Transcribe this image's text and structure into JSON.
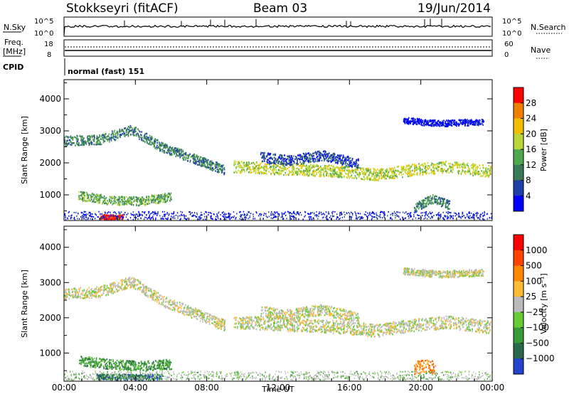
{
  "header": {
    "station": "Stokkseyri (fitACF)",
    "beam": "Beam 03",
    "date": "19/Jun/2014"
  },
  "top_panels": {
    "nsky_label": "N.Sky",
    "nsky_ticks": [
      "10^5",
      "10^0"
    ],
    "nsearch_label": "N.Search",
    "nsearch_ticks": [
      "10^5",
      "10^0"
    ],
    "freq_label_1": "Freq.",
    "freq_label_2": "[MHz]",
    "freq_ticks": [
      "18",
      "8"
    ],
    "nave_label": "Nave",
    "nave_ticks": [
      "60",
      "0"
    ],
    "cpid_label": "CPID",
    "cpid_text": "normal (fast) 151"
  },
  "colors": {
    "power_scale": [
      "#0000ff",
      "#1f3fa8",
      "#3a7a58",
      "#4fa84f",
      "#b8d83a",
      "#f0c000",
      "#f08000",
      "#ff0000"
    ],
    "velocity_scale": [
      "#2244cc",
      "#2a6a4a",
      "#3a9a3a",
      "#66cc33",
      "#bbbbbb",
      "#ffbb33",
      "#ff8800",
      "#ff4400",
      "#ff0000"
    ]
  },
  "chart_data": [
    {
      "type": "heatmap",
      "name": "power",
      "ylabel": "Slant Range [km]",
      "yticks": [
        1000,
        2000,
        3000,
        4000
      ],
      "ylim": [
        200,
        4600
      ],
      "xlim": [
        0,
        24
      ],
      "colorbar_label": "Power [dB]",
      "colorbar_ticks": [
        "28",
        "24",
        "20",
        "16",
        "12",
        "8",
        "4"
      ],
      "bands": [
        {
          "x": [
            0.0,
            2.0,
            3.8,
            5.5,
            7.5,
            9.0
          ],
          "y": [
            2700,
            2750,
            3050,
            2500,
            2100,
            1800
          ],
          "w": 220,
          "level": 2
        },
        {
          "x": [
            9.5,
            11.5,
            13.5,
            15.5,
            17.5,
            19.5,
            21.5,
            23.9
          ],
          "y": [
            1900,
            1850,
            1800,
            1750,
            1650,
            1800,
            1900,
            1750
          ],
          "w": 260,
          "level": 4
        },
        {
          "x": [
            11.0,
            12.5,
            14.5,
            16.5
          ],
          "y": [
            2200,
            2100,
            2250,
            2000
          ],
          "w": 220,
          "level": 1
        },
        {
          "x": [
            0.8,
            2.5,
            4.2,
            6.0
          ],
          "y": [
            1000,
            850,
            820,
            950
          ],
          "w": 200,
          "level": 3
        },
        {
          "x": [
            2.0,
            2.6,
            3.3
          ],
          "y": [
            330,
            320,
            330
          ],
          "w": 110,
          "level": 7
        },
        {
          "x": [
            19.6,
            20.6,
            21.6
          ],
          "y": [
            600,
            900,
            700
          ],
          "w": 200,
          "level": 2
        },
        {
          "x": [
            19.0,
            21.0,
            23.5
          ],
          "y": [
            3350,
            3250,
            3300
          ],
          "w": 140,
          "level": 0
        }
      ]
    },
    {
      "type": "heatmap",
      "name": "velocity",
      "ylabel": "Slant Range [km]",
      "yticks": [
        1000,
        2000,
        3000,
        4000
      ],
      "ylim": [
        200,
        4600
      ],
      "xlim": [
        0,
        24
      ],
      "xlabel": "Time UT",
      "xticks": [
        "00:00",
        "04:00",
        "08:00",
        "12:00",
        "16:00",
        "20:00",
        "00:00"
      ],
      "colorbar_label": "Velocity [m s⁻¹]",
      "colorbar_ticks": [
        "1000",
        "500",
        "100",
        "25",
        "−25",
        "−100",
        "−500",
        "−1000"
      ],
      "bands": [
        {
          "x": [
            0.0,
            2.0,
            3.8,
            5.5,
            7.5,
            9.0
          ],
          "y": [
            2700,
            2750,
            3050,
            2500,
            2100,
            1800
          ],
          "w": 220,
          "level": 4
        },
        {
          "x": [
            9.5,
            11.5,
            13.5,
            15.5,
            17.5,
            19.5,
            21.5,
            23.9
          ],
          "y": [
            1900,
            1850,
            1800,
            1750,
            1650,
            1800,
            1900,
            1750
          ],
          "w": 260,
          "level": 4
        },
        {
          "x": [
            11.0,
            12.5,
            14.5,
            16.5
          ],
          "y": [
            2200,
            2100,
            2250,
            2000
          ],
          "w": 220,
          "level": 4
        },
        {
          "x": [
            0.8,
            2.5,
            4.2,
            6.0
          ],
          "y": [
            800,
            700,
            650,
            700
          ],
          "w": 200,
          "level": 2
        },
        {
          "x": [
            1.8,
            3.5,
            5.5
          ],
          "y": [
            350,
            330,
            340
          ],
          "w": 120,
          "level": 1
        },
        {
          "x": [
            19.6,
            20.2,
            20.8
          ],
          "y": [
            600,
            650,
            600
          ],
          "w": 260,
          "level": 6
        },
        {
          "x": [
            19.0,
            21.0,
            23.5
          ],
          "y": [
            3350,
            3250,
            3300
          ],
          "w": 140,
          "level": 4
        }
      ]
    }
  ]
}
